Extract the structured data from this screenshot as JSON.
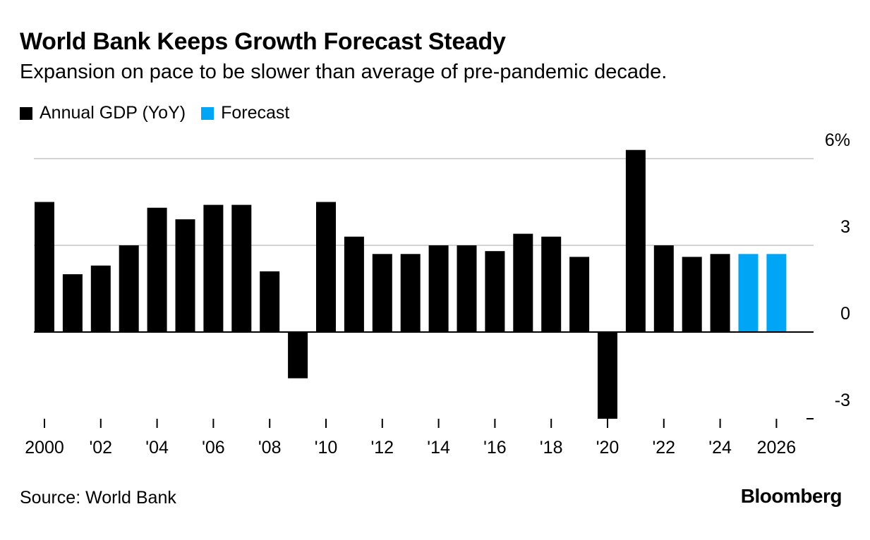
{
  "chart_data": {
    "type": "bar",
    "title": "World Bank Keeps Growth Forecast Steady",
    "subtitle": "Expansion on pace to be slower than average of pre-pandemic decade.",
    "ylim": [
      -3,
      6
    ],
    "yticks": [
      6,
      3,
      0,
      -3
    ],
    "ytick_labels": [
      "6%",
      "3",
      "0",
      "-3"
    ],
    "xtick_labels": [
      "2000",
      "'02",
      "'04",
      "'06",
      "'08",
      "'10",
      "'12",
      "'14",
      "'16",
      "'18",
      "'20",
      "'22",
      "'24",
      "2026"
    ],
    "xtick_years": [
      2000,
      2002,
      2004,
      2006,
      2008,
      2010,
      2012,
      2014,
      2016,
      2018,
      2020,
      2022,
      2024,
      2026
    ],
    "legend": [
      {
        "name": "Annual GDP (YoY)",
        "color": "#000000"
      },
      {
        "name": "Forecast",
        "color": "#00a6f6"
      }
    ],
    "legend_position": "top-left",
    "grid": true,
    "series": [
      {
        "name": "Annual GDP (YoY)",
        "color": "#000000",
        "x": [
          2000,
          2001,
          2002,
          2003,
          2004,
          2005,
          2006,
          2007,
          2008,
          2009,
          2010,
          2011,
          2012,
          2013,
          2014,
          2015,
          2016,
          2017,
          2018,
          2019,
          2020,
          2021,
          2022,
          2023,
          2024
        ],
        "values": [
          4.5,
          2.0,
          2.3,
          3.0,
          4.3,
          3.9,
          4.4,
          4.4,
          2.1,
          -1.6,
          4.5,
          3.3,
          2.7,
          2.7,
          3.0,
          3.0,
          2.8,
          3.4,
          3.3,
          2.6,
          -3.0,
          6.3,
          3.0,
          2.6,
          2.7
        ]
      },
      {
        "name": "Forecast",
        "color": "#00a6f6",
        "x": [
          2025,
          2026
        ],
        "values": [
          2.7,
          2.7
        ]
      }
    ]
  },
  "footer": {
    "source": "Source: World Bank",
    "brand": "Bloomberg"
  }
}
